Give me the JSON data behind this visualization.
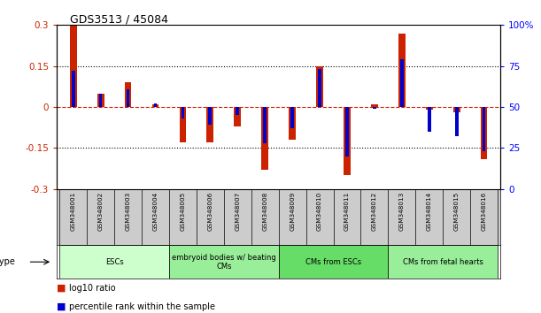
{
  "title": "GDS3513 / 45084",
  "samples": [
    "GSM348001",
    "GSM348002",
    "GSM348003",
    "GSM348004",
    "GSM348005",
    "GSM348006",
    "GSM348007",
    "GSM348008",
    "GSM348009",
    "GSM348010",
    "GSM348011",
    "GSM348012",
    "GSM348013",
    "GSM348014",
    "GSM348015",
    "GSM348016"
  ],
  "log10_ratio": [
    0.3,
    0.05,
    0.09,
    0.01,
    -0.13,
    -0.13,
    -0.07,
    -0.23,
    -0.12,
    0.15,
    -0.25,
    0.01,
    0.27,
    -0.01,
    -0.02,
    -0.19
  ],
  "percentile_rank": [
    72,
    58,
    61,
    52,
    43,
    39,
    45,
    28,
    37,
    73,
    20,
    49,
    79,
    35,
    32,
    23
  ],
  "cell_types": [
    {
      "label": "ESCs",
      "start": 0,
      "end": 4,
      "color": "#ccffcc"
    },
    {
      "label": "embryoid bodies w/ beating\nCMs",
      "start": 4,
      "end": 8,
      "color": "#99ee99"
    },
    {
      "label": "CMs from ESCs",
      "start": 8,
      "end": 12,
      "color": "#66dd66"
    },
    {
      "label": "CMs from fetal hearts",
      "start": 12,
      "end": 16,
      "color": "#99ee99"
    }
  ],
  "ylim_left": [
    -0.3,
    0.3
  ],
  "ylim_right": [
    0,
    100
  ],
  "yticks_left": [
    -0.3,
    -0.15,
    0.0,
    0.15,
    0.3
  ],
  "yticks_right": [
    0,
    25,
    50,
    75,
    100
  ],
  "bar_color_red": "#cc2200",
  "bar_color_blue": "#0000cc",
  "zero_line_color": "#cc2200",
  "bg_color": "#ffffff",
  "label_bg": "#cccccc",
  "red_bar_width": 0.25,
  "blue_bar_width": 0.12
}
